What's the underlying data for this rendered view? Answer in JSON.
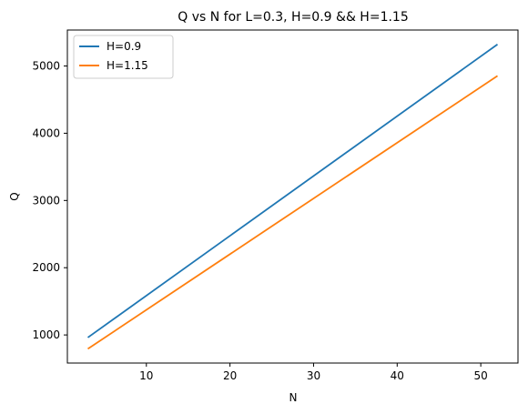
{
  "chart_data": {
    "type": "line",
    "title": "Q vs N for L=0.3, H=0.9 && H=1.15",
    "xlabel": "N",
    "ylabel": "Q",
    "xlim": [
      0.55,
      54.45
    ],
    "ylim": [
      582,
      5535
    ],
    "xticks": [
      10,
      20,
      30,
      40,
      50
    ],
    "yticks": [
      1000,
      2000,
      3000,
      4000,
      5000
    ],
    "grid": false,
    "legend_position": "top-left",
    "series": [
      {
        "name": "H=0.9",
        "color": "#1f77b4",
        "x": [
          3,
          52
        ],
        "y": [
          962,
          5322
        ]
      },
      {
        "name": "H=1.15",
        "color": "#ff7f0e",
        "x": [
          3,
          52
        ],
        "y": [
          793,
          4853
        ]
      }
    ]
  }
}
